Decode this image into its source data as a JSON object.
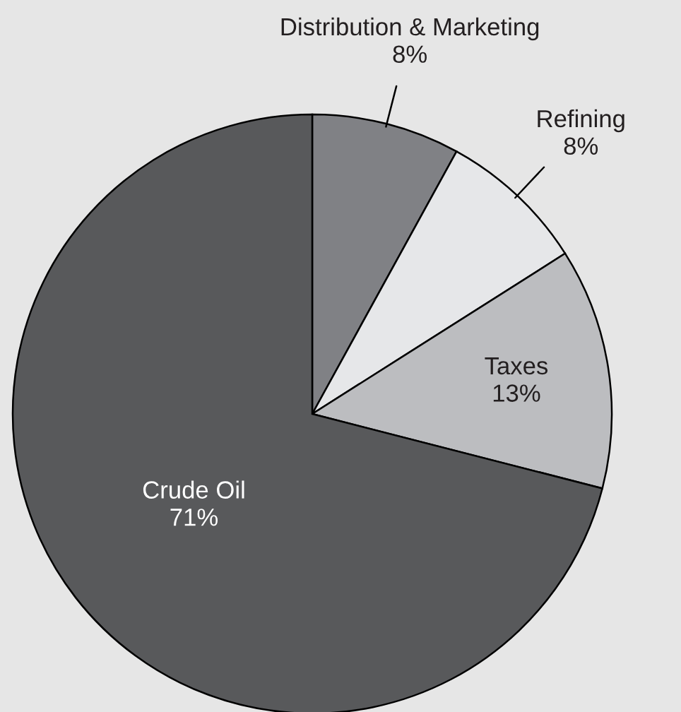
{
  "chart_data": {
    "type": "pie",
    "categories": [
      "Distribution & Marketing",
      "Refining",
      "Taxes",
      "Crude Oil"
    ],
    "values": [
      8,
      8,
      13,
      71
    ],
    "value_labels": [
      "8%",
      "8%",
      "13%",
      "71%"
    ],
    "colors": [
      "#808185",
      "#e6e7e9",
      "#bcbdc0",
      "#58595b"
    ]
  }
}
